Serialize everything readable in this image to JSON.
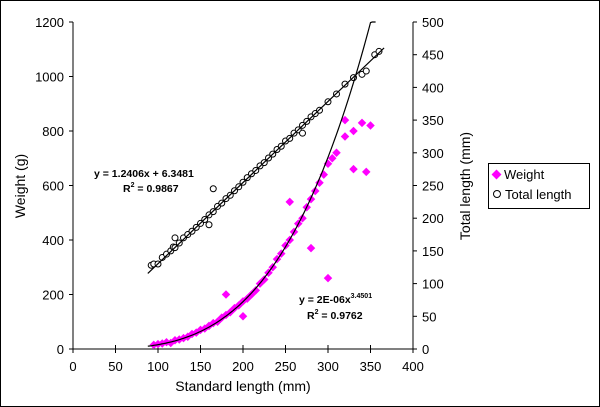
{
  "chart_data": {
    "type": "scatter",
    "xlabel": "Standard length (mm)",
    "ylabel": "Weight (g)",
    "y2label": "Total length (mm)",
    "xlim": [
      0,
      400
    ],
    "ylim": [
      0,
      1200
    ],
    "y2lim": [
      0,
      500
    ],
    "xticks": [
      "0",
      "50",
      "100",
      "150",
      "200",
      "250",
      "300",
      "350",
      "400"
    ],
    "yticks": [
      "0",
      "200",
      "400",
      "600",
      "800",
      "1000",
      "1200"
    ],
    "y2ticks": [
      "0",
      "50",
      "100",
      "150",
      "200",
      "250",
      "300",
      "350",
      "400",
      "450",
      "500"
    ],
    "grid": false,
    "legend_position": "right",
    "series": [
      {
        "name": "Weight",
        "axis": "left",
        "marker": "diamond",
        "color": "#ff00ff",
        "points": [
          [
            95,
            15
          ],
          [
            100,
            18
          ],
          [
            105,
            20
          ],
          [
            110,
            25
          ],
          [
            115,
            22
          ],
          [
            120,
            32
          ],
          [
            125,
            35
          ],
          [
            130,
            40
          ],
          [
            135,
            45
          ],
          [
            140,
            55
          ],
          [
            145,
            60
          ],
          [
            150,
            70
          ],
          [
            155,
            75
          ],
          [
            160,
            85
          ],
          [
            165,
            95
          ],
          [
            170,
            100
          ],
          [
            175,
            115
          ],
          [
            180,
            125
          ],
          [
            185,
            135
          ],
          [
            190,
            150
          ],
          [
            195,
            160
          ],
          [
            200,
            175
          ],
          [
            205,
            185
          ],
          [
            210,
            200
          ],
          [
            215,
            215
          ],
          [
            220,
            240
          ],
          [
            225,
            255
          ],
          [
            230,
            280
          ],
          [
            235,
            300
          ],
          [
            240,
            330
          ],
          [
            245,
            350
          ],
          [
            250,
            380
          ],
          [
            255,
            400
          ],
          [
            260,
            430
          ],
          [
            265,
            460
          ],
          [
            270,
            480
          ],
          [
            275,
            520
          ],
          [
            280,
            550
          ],
          [
            285,
            580
          ],
          [
            290,
            610
          ],
          [
            295,
            640
          ],
          [
            300,
            680
          ],
          [
            305,
            700
          ],
          [
            310,
            720
          ],
          [
            320,
            780
          ],
          [
            330,
            800
          ],
          [
            340,
            830
          ],
          [
            350,
            820
          ],
          [
            300,
            260
          ],
          [
            280,
            370
          ],
          [
            255,
            540
          ],
          [
            200,
            120
          ],
          [
            180,
            200
          ],
          [
            330,
            660
          ],
          [
            345,
            650
          ],
          [
            320,
            840
          ]
        ],
        "fit": {
          "type": "power",
          "a": 2e-06,
          "b": 3.4501,
          "x_range": [
            88,
            356
          ],
          "equation": "y = 2E-06x",
          "exponent": "3.4501",
          "r2_label": "R",
          "r2_sup": "2",
          "r2_value": " = 0.9762"
        }
      },
      {
        "name": "Total length",
        "axis": "right",
        "marker": "circle",
        "color": "#000000",
        "points": [
          [
            92,
            128
          ],
          [
            95,
            130
          ],
          [
            100,
            130
          ],
          [
            105,
            140
          ],
          [
            110,
            145
          ],
          [
            115,
            150
          ],
          [
            118,
            156
          ],
          [
            120,
            155
          ],
          [
            125,
            162
          ],
          [
            130,
            170
          ],
          [
            135,
            175
          ],
          [
            140,
            180
          ],
          [
            145,
            186
          ],
          [
            150,
            192
          ],
          [
            155,
            198
          ],
          [
            160,
            205
          ],
          [
            165,
            210
          ],
          [
            170,
            218
          ],
          [
            175,
            223
          ],
          [
            180,
            230
          ],
          [
            185,
            235
          ],
          [
            190,
            242
          ],
          [
            195,
            248
          ],
          [
            200,
            255
          ],
          [
            205,
            262
          ],
          [
            210,
            268
          ],
          [
            215,
            273
          ],
          [
            220,
            280
          ],
          [
            225,
            285
          ],
          [
            230,
            292
          ],
          [
            235,
            298
          ],
          [
            240,
            305
          ],
          [
            245,
            310
          ],
          [
            250,
            318
          ],
          [
            255,
            322
          ],
          [
            260,
            330
          ],
          [
            265,
            335
          ],
          [
            270,
            342
          ],
          [
            275,
            348
          ],
          [
            280,
            355
          ],
          [
            285,
            360
          ],
          [
            290,
            365
          ],
          [
            300,
            378
          ],
          [
            310,
            390
          ],
          [
            320,
            405
          ],
          [
            330,
            415
          ],
          [
            340,
            420
          ],
          [
            345,
            425
          ],
          [
            355,
            450
          ],
          [
            360,
            455
          ],
          [
            165,
            245
          ],
          [
            120,
            170
          ],
          [
            270,
            330
          ],
          [
            160,
            190
          ]
        ],
        "fit": {
          "type": "linear",
          "slope": 1.2406,
          "intercept": 6.3481,
          "x_range": [
            88,
            366
          ],
          "equation": "y = 1.2406x + 6.3481",
          "r2_label": "R",
          "r2_sup": "2",
          "r2_value": " = 0.9867"
        }
      }
    ]
  }
}
